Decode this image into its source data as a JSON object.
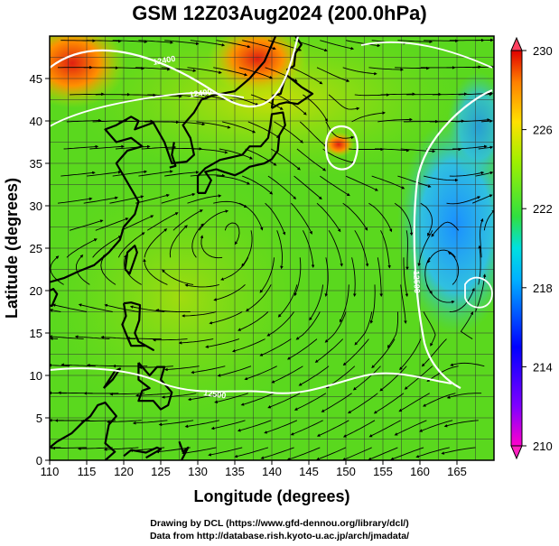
{
  "title": "GSM 12Z03Aug2024 (200.0hPa)",
  "xaxis": {
    "label": "Longitude (degrees)",
    "ticks": [
      "110",
      "115",
      "120",
      "125",
      "130",
      "135",
      "140",
      "145",
      "150",
      "155",
      "160",
      "165"
    ]
  },
  "yaxis": {
    "label": "Latitude  (degrees)",
    "ticks": [
      "0",
      "5",
      "10",
      "15",
      "20",
      "25",
      "30",
      "35",
      "40",
      "45"
    ]
  },
  "colorbar": {
    "ticks": [
      "210",
      "214",
      "218",
      "222",
      "226",
      "230"
    ],
    "min": 210,
    "max": 230
  },
  "contour_labels": [
    "12400",
    "12400",
    "12500",
    "12500"
  ],
  "credits": [
    "Drawing by DCL (https://www.gfd-dennou.org/library/dcl/)",
    "Data from http://database.rish.kyoto-u.ac.jp/arch/jmadata/"
  ],
  "map": {
    "lon_range": [
      110,
      170
    ],
    "lat_range": [
      0,
      50
    ],
    "field": "temperature (K) with streamlines and geopotential height contours",
    "colors": {
      "warm": "#e03010",
      "neutral": "#30c020",
      "cool": "#2aa0ff"
    }
  }
}
